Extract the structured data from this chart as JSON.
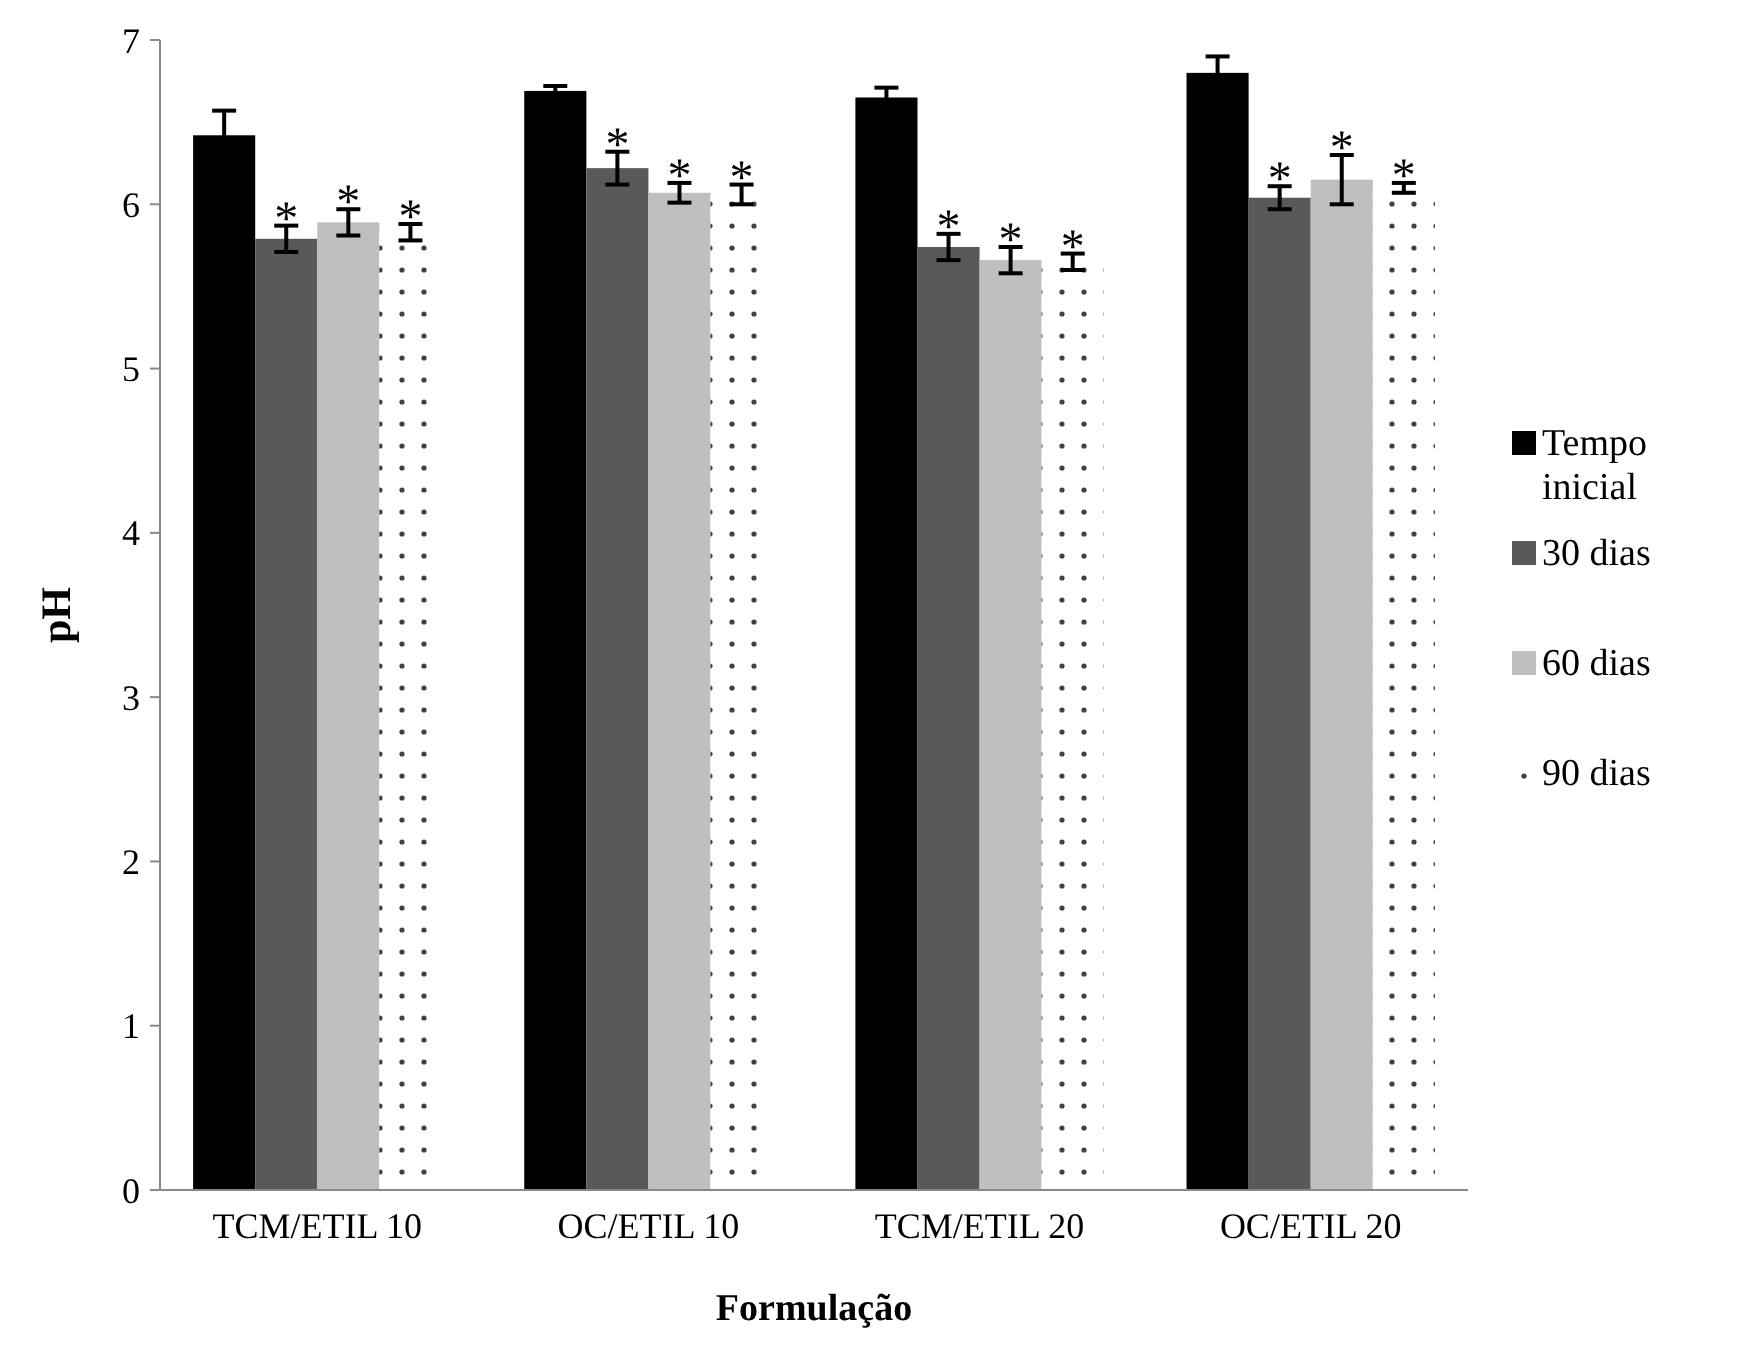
{
  "chart_data": {
    "type": "bar",
    "xlabel": "Formulação",
    "ylabel": "pH",
    "categories": [
      "TCM/ETIL 10",
      "OC/ETIL 10",
      "TCM/ETIL 20",
      "OC/ETIL 20"
    ],
    "ylim": [
      0,
      7
    ],
    "yticks": [
      0,
      1,
      2,
      3,
      4,
      5,
      6,
      7
    ],
    "legend": "right",
    "series": [
      {
        "name": "Tempo inicial",
        "color": "#000000",
        "values": [
          6.42,
          6.69,
          6.65,
          6.8
        ],
        "errors": [
          0.15,
          0.03,
          0.06,
          0.1
        ]
      },
      {
        "name": "30 dias",
        "color": "#595959",
        "values": [
          5.79,
          6.22,
          5.74,
          6.04
        ],
        "errors": [
          0.08,
          0.1,
          0.08,
          0.07
        ],
        "value_labels": [
          "*",
          "*",
          "*",
          "*"
        ]
      },
      {
        "name": "60 dias",
        "color": "#bfbfbf",
        "values": [
          5.89,
          6.07,
          5.66,
          6.15
        ],
        "errors": [
          0.08,
          0.06,
          0.08,
          0.15
        ],
        "value_labels": [
          "*",
          "*",
          "*",
          "*"
        ]
      },
      {
        "name": "90 dias",
        "color": "#ffffff",
        "values": [
          5.83,
          6.06,
          5.65,
          6.1
        ],
        "errors": [
          0.05,
          0.06,
          0.05,
          0.03
        ],
        "value_labels": [
          "*",
          "*",
          "*",
          "*"
        ]
      }
    ]
  }
}
